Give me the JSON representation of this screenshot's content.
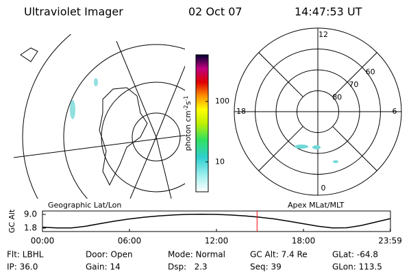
{
  "header": {
    "title": "Ultraviolet Imager",
    "date": "02 Oct 07",
    "time": "14:47:53 UT"
  },
  "colorbar": {
    "unit_parts": [
      "photon cm",
      "-2",
      "s",
      "-1"
    ],
    "scale": "log",
    "clim": [
      3.2,
      590
    ],
    "ticks": [
      10,
      100
    ]
  },
  "polar": {
    "rlim": [
      90,
      50
    ],
    "lat_rings": [
      80,
      70,
      60
    ],
    "mlt_labels": [
      0,
      6,
      12,
      18
    ]
  },
  "panel_labels": [
    "Geographic Lat/Lon",
    "Apex MLat/MLT"
  ],
  "chart_data": {
    "type": "line",
    "ylabel": "GC Alt",
    "color": "#000000",
    "x": [
      0,
      1,
      2,
      3,
      4,
      5,
      6,
      7,
      8,
      9,
      10,
      11,
      12,
      13,
      14,
      15,
      16,
      17,
      18,
      19,
      20,
      21,
      22,
      23,
      24
    ],
    "values": [
      2.3,
      1.9,
      1.9,
      2.8,
      4.2,
      5.5,
      6.6,
      7.5,
      8.2,
      8.7,
      9.0,
      9.1,
      9.0,
      8.7,
      8.2,
      7.5,
      6.6,
      5.4,
      4.1,
      2.8,
      1.9,
      2.0,
      3.2,
      5.0,
      6.8
    ],
    "xlim": [
      0,
      24
    ],
    "ylim": [
      0,
      10.8
    ],
    "xticks": [
      {
        "value": 0,
        "label": "00:00"
      },
      {
        "value": 6,
        "label": "06:00"
      },
      {
        "value": 12,
        "label": "12:00"
      },
      {
        "value": 18,
        "label": "18:00"
      },
      {
        "value": 23.98,
        "label": "23:59"
      }
    ],
    "yticks": [
      {
        "value": 1.8,
        "label": "1.8"
      },
      {
        "value": 9,
        "label": "9.0"
      }
    ],
    "marker_x": 14.8,
    "marker_color": "#ff0000"
  },
  "footer": {
    "rows": [
      [
        "Flt: LBHL",
        "Door: Open",
        "Mode: Normal",
        "GC Alt: 7.4 Re",
        "GLat: -64.8"
      ],
      [
        "IP: 36.0",
        "Gain: 14",
        "Dsp:   2.3",
        "Seq: 39",
        "GLon: 113.5"
      ]
    ]
  }
}
